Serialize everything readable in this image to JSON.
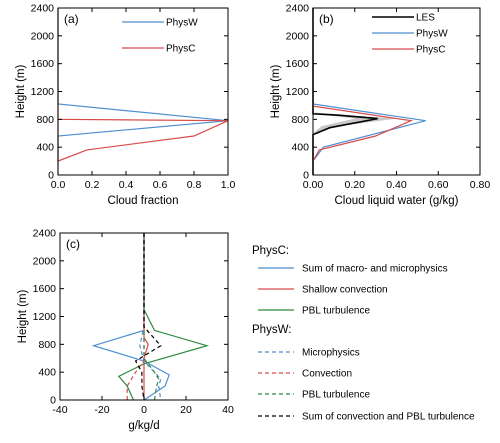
{
  "chart_data": [
    {
      "type": "line",
      "panel_label": "(a)",
      "xlabel": "Cloud fraction",
      "ylabel": "Height (m)",
      "xlim": [
        0,
        1.0
      ],
      "ylim": [
        0,
        2400
      ],
      "xticks": [
        "0.0",
        "0.2",
        "0.4",
        "0.6",
        "0.8",
        "1.0"
      ],
      "yticks": [
        "0",
        "400",
        "800",
        "1200",
        "1600",
        "2000",
        "2400"
      ],
      "legend": "top-right",
      "series": [
        {
          "name": "PhysW",
          "color": "#4d8fd1",
          "x": [
            0,
            0,
            1.0,
            0,
            0
          ],
          "y": [
            2400,
            1020,
            780,
            560,
            0
          ]
        },
        {
          "name": "PhysC",
          "color": "#d94a4a",
          "x": [
            0,
            0,
            0.17,
            0.8,
            1.0,
            0,
            0
          ],
          "y": [
            2400,
            200,
            360,
            560,
            780,
            800,
            2400
          ]
        }
      ]
    },
    {
      "type": "line",
      "panel_label": "(b)",
      "xlabel": "Cloud liquid water (g/kg)",
      "ylabel": "Height (m)",
      "xlim": [
        0,
        0.8
      ],
      "ylim": [
        0,
        2400
      ],
      "xticks": [
        "0.00",
        "0.20",
        "0.40",
        "0.60",
        "0.80"
      ],
      "yticks": [
        "0",
        "400",
        "800",
        "1200",
        "1600",
        "2000",
        "2400"
      ],
      "legend": "top-right",
      "series": [
        {
          "name": "LES",
          "color": "#000000",
          "x": [
            0,
            0,
            0.12,
            0.31,
            0.08,
            0,
            0
          ],
          "y": [
            2400,
            880,
            860,
            810,
            680,
            580,
            0
          ]
        },
        {
          "name": "PhysW",
          "color": "#4d8fd1",
          "x": [
            0,
            0,
            0.54,
            0.05,
            0,
            0
          ],
          "y": [
            2400,
            1020,
            780,
            400,
            200,
            0
          ]
        },
        {
          "name": "PhysC",
          "color": "#d94a4a",
          "x": [
            0,
            0,
            0.47,
            0.3,
            0.03,
            0,
            0
          ],
          "y": [
            2400,
            990,
            780,
            560,
            360,
            200,
            0
          ]
        }
      ],
      "shaded_band": {
        "series": "LES",
        "color": "#c8c8c8",
        "x_low": [
          0,
          0.06,
          0.2,
          0.04,
          0
        ],
        "x_high": [
          0,
          0.18,
          0.4,
          0.12,
          0
        ],
        "y": [
          900,
          860,
          810,
          700,
          600
        ]
      }
    },
    {
      "type": "line",
      "panel_label": "(c)",
      "xlabel": "g/kg/d",
      "ylabel": "Height (m)",
      "xlim": [
        -40,
        40
      ],
      "ylim": [
        0,
        2400
      ],
      "xticks": [
        "-40",
        "-20",
        "0",
        "20",
        "40"
      ],
      "yticks": [
        "0",
        "400",
        "800",
        "1200",
        "1600",
        "2000",
        "2400"
      ],
      "legend": "right",
      "legend_headers": [
        "PhysC:",
        "PhysW:"
      ],
      "series": [
        {
          "name": "Sum of macro- and microphysics",
          "group": "PhysC",
          "dash": "solid",
          "color": "#4d8fd1",
          "x": [
            0,
            0,
            -24,
            0,
            12,
            10,
            0
          ],
          "y": [
            2400,
            1000,
            780,
            560,
            360,
            200,
            0
          ]
        },
        {
          "name": "Shallow convection",
          "group": "PhysC",
          "dash": "solid",
          "color": "#d94a4a",
          "x": [
            0,
            0,
            2,
            0,
            0
          ],
          "y": [
            2400,
            900,
            800,
            600,
            0
          ]
        },
        {
          "name": "PBL turbulence",
          "group": "PhysC",
          "dash": "solid",
          "color": "#2e8b3e",
          "x": [
            0,
            0,
            5,
            30,
            0,
            -12,
            -8,
            -5
          ],
          "y": [
            2400,
            1300,
            1000,
            780,
            520,
            340,
            200,
            0
          ]
        },
        {
          "name": "Microphysics",
          "group": "PhysW",
          "dash": "dashed",
          "color": "#4d8fd1",
          "x": [
            0,
            0,
            -2,
            0,
            5,
            8,
            7,
            8
          ],
          "y": [
            2400,
            1050,
            780,
            560,
            400,
            300,
            200,
            0
          ]
        },
        {
          "name": "Convection",
          "group": "PhysW",
          "dash": "dashed",
          "color": "#d94a4a",
          "x": [
            0,
            0,
            -4,
            -8,
            -8
          ],
          "y": [
            2400,
            560,
            400,
            200,
            0
          ]
        },
        {
          "name": "PBL turbulence",
          "group": "PhysW",
          "dash": "dashed",
          "color": "#2e8b3e",
          "x": [
            0,
            0,
            5,
            7,
            6,
            5
          ],
          "y": [
            2400,
            600,
            400,
            300,
            200,
            0
          ]
        },
        {
          "name": "Sum of convection and PBL turbulence",
          "group": "PhysW",
          "dash": "dashed",
          "color": "#000000",
          "x": [
            0,
            0,
            8,
            -4,
            -1,
            -1,
            0
          ],
          "y": [
            2400,
            1050,
            780,
            560,
            400,
            200,
            0
          ]
        }
      ]
    }
  ]
}
